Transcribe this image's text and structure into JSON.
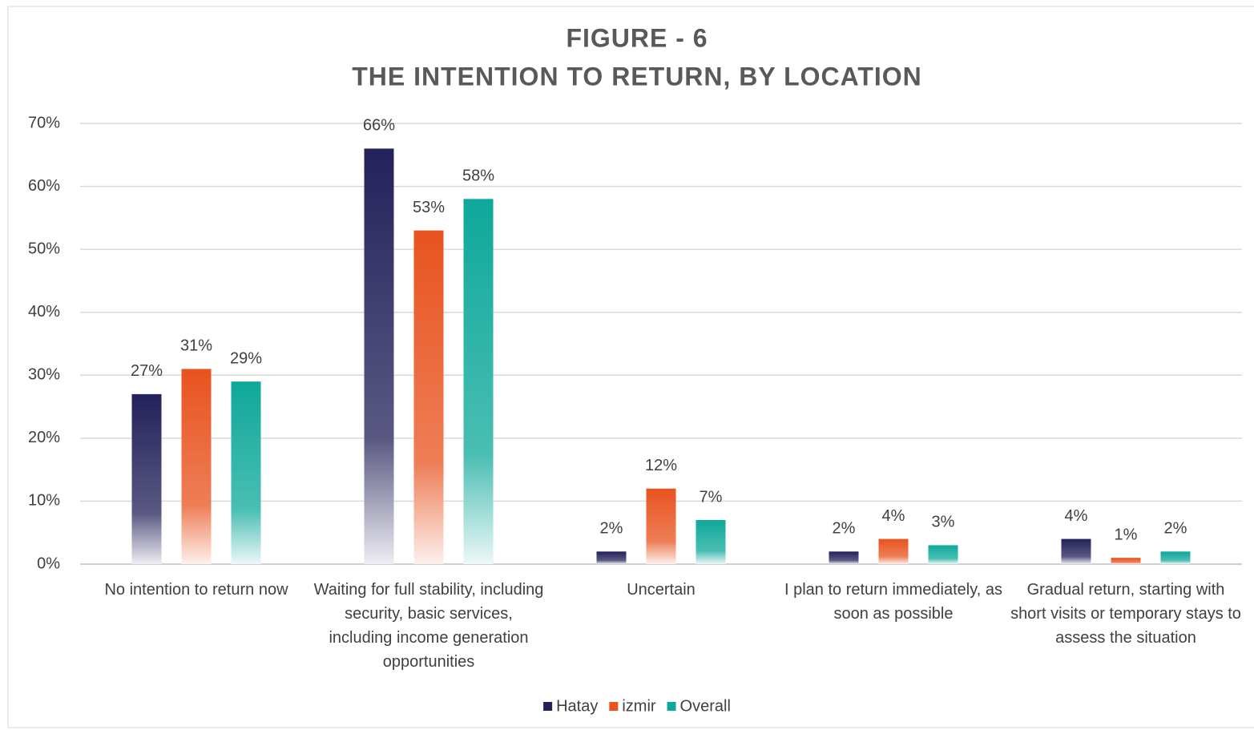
{
  "chart_data": {
    "type": "bar",
    "title": "FIGURE - 6",
    "subtitle": "THE INTENTION TO RETURN, BY LOCATION",
    "categories": [
      "No intention to return now",
      "Waiting for full stability, including security, basic services, including income generation opportunities",
      "Uncertain",
      "I plan to return immediately, as soon as possible",
      "Gradual return, starting with short visits or temporary stays to assess the situation"
    ],
    "series": [
      {
        "name": "Hatay",
        "color": "#23215a",
        "values": [
          27,
          66,
          2,
          2,
          4
        ],
        "value_labels": [
          "27%",
          "66%",
          "2%",
          "2%",
          "4%"
        ]
      },
      {
        "name": "izmir",
        "color": "#e8531f",
        "values": [
          31,
          53,
          12,
          4,
          1
        ],
        "value_labels": [
          "31%",
          "53%",
          "12%",
          "4%",
          "1%"
        ]
      },
      {
        "name": "Overall",
        "color": "#0ea89a",
        "values": [
          29,
          58,
          7,
          3,
          2
        ],
        "value_labels": [
          "29%",
          "58%",
          "7%",
          "3%",
          "2%"
        ]
      }
    ],
    "ylim": [
      0,
      70
    ],
    "yticks": [
      {
        "value": 0,
        "label": "0%"
      },
      {
        "value": 10,
        "label": "10%"
      },
      {
        "value": 20,
        "label": "20%"
      },
      {
        "value": 30,
        "label": "30%"
      },
      {
        "value": 40,
        "label": "40%"
      },
      {
        "value": 50,
        "label": "50%"
      },
      {
        "value": 60,
        "label": "60%"
      },
      {
        "value": 70,
        "label": "70%"
      }
    ],
    "grid": true,
    "legend": "bottom"
  }
}
